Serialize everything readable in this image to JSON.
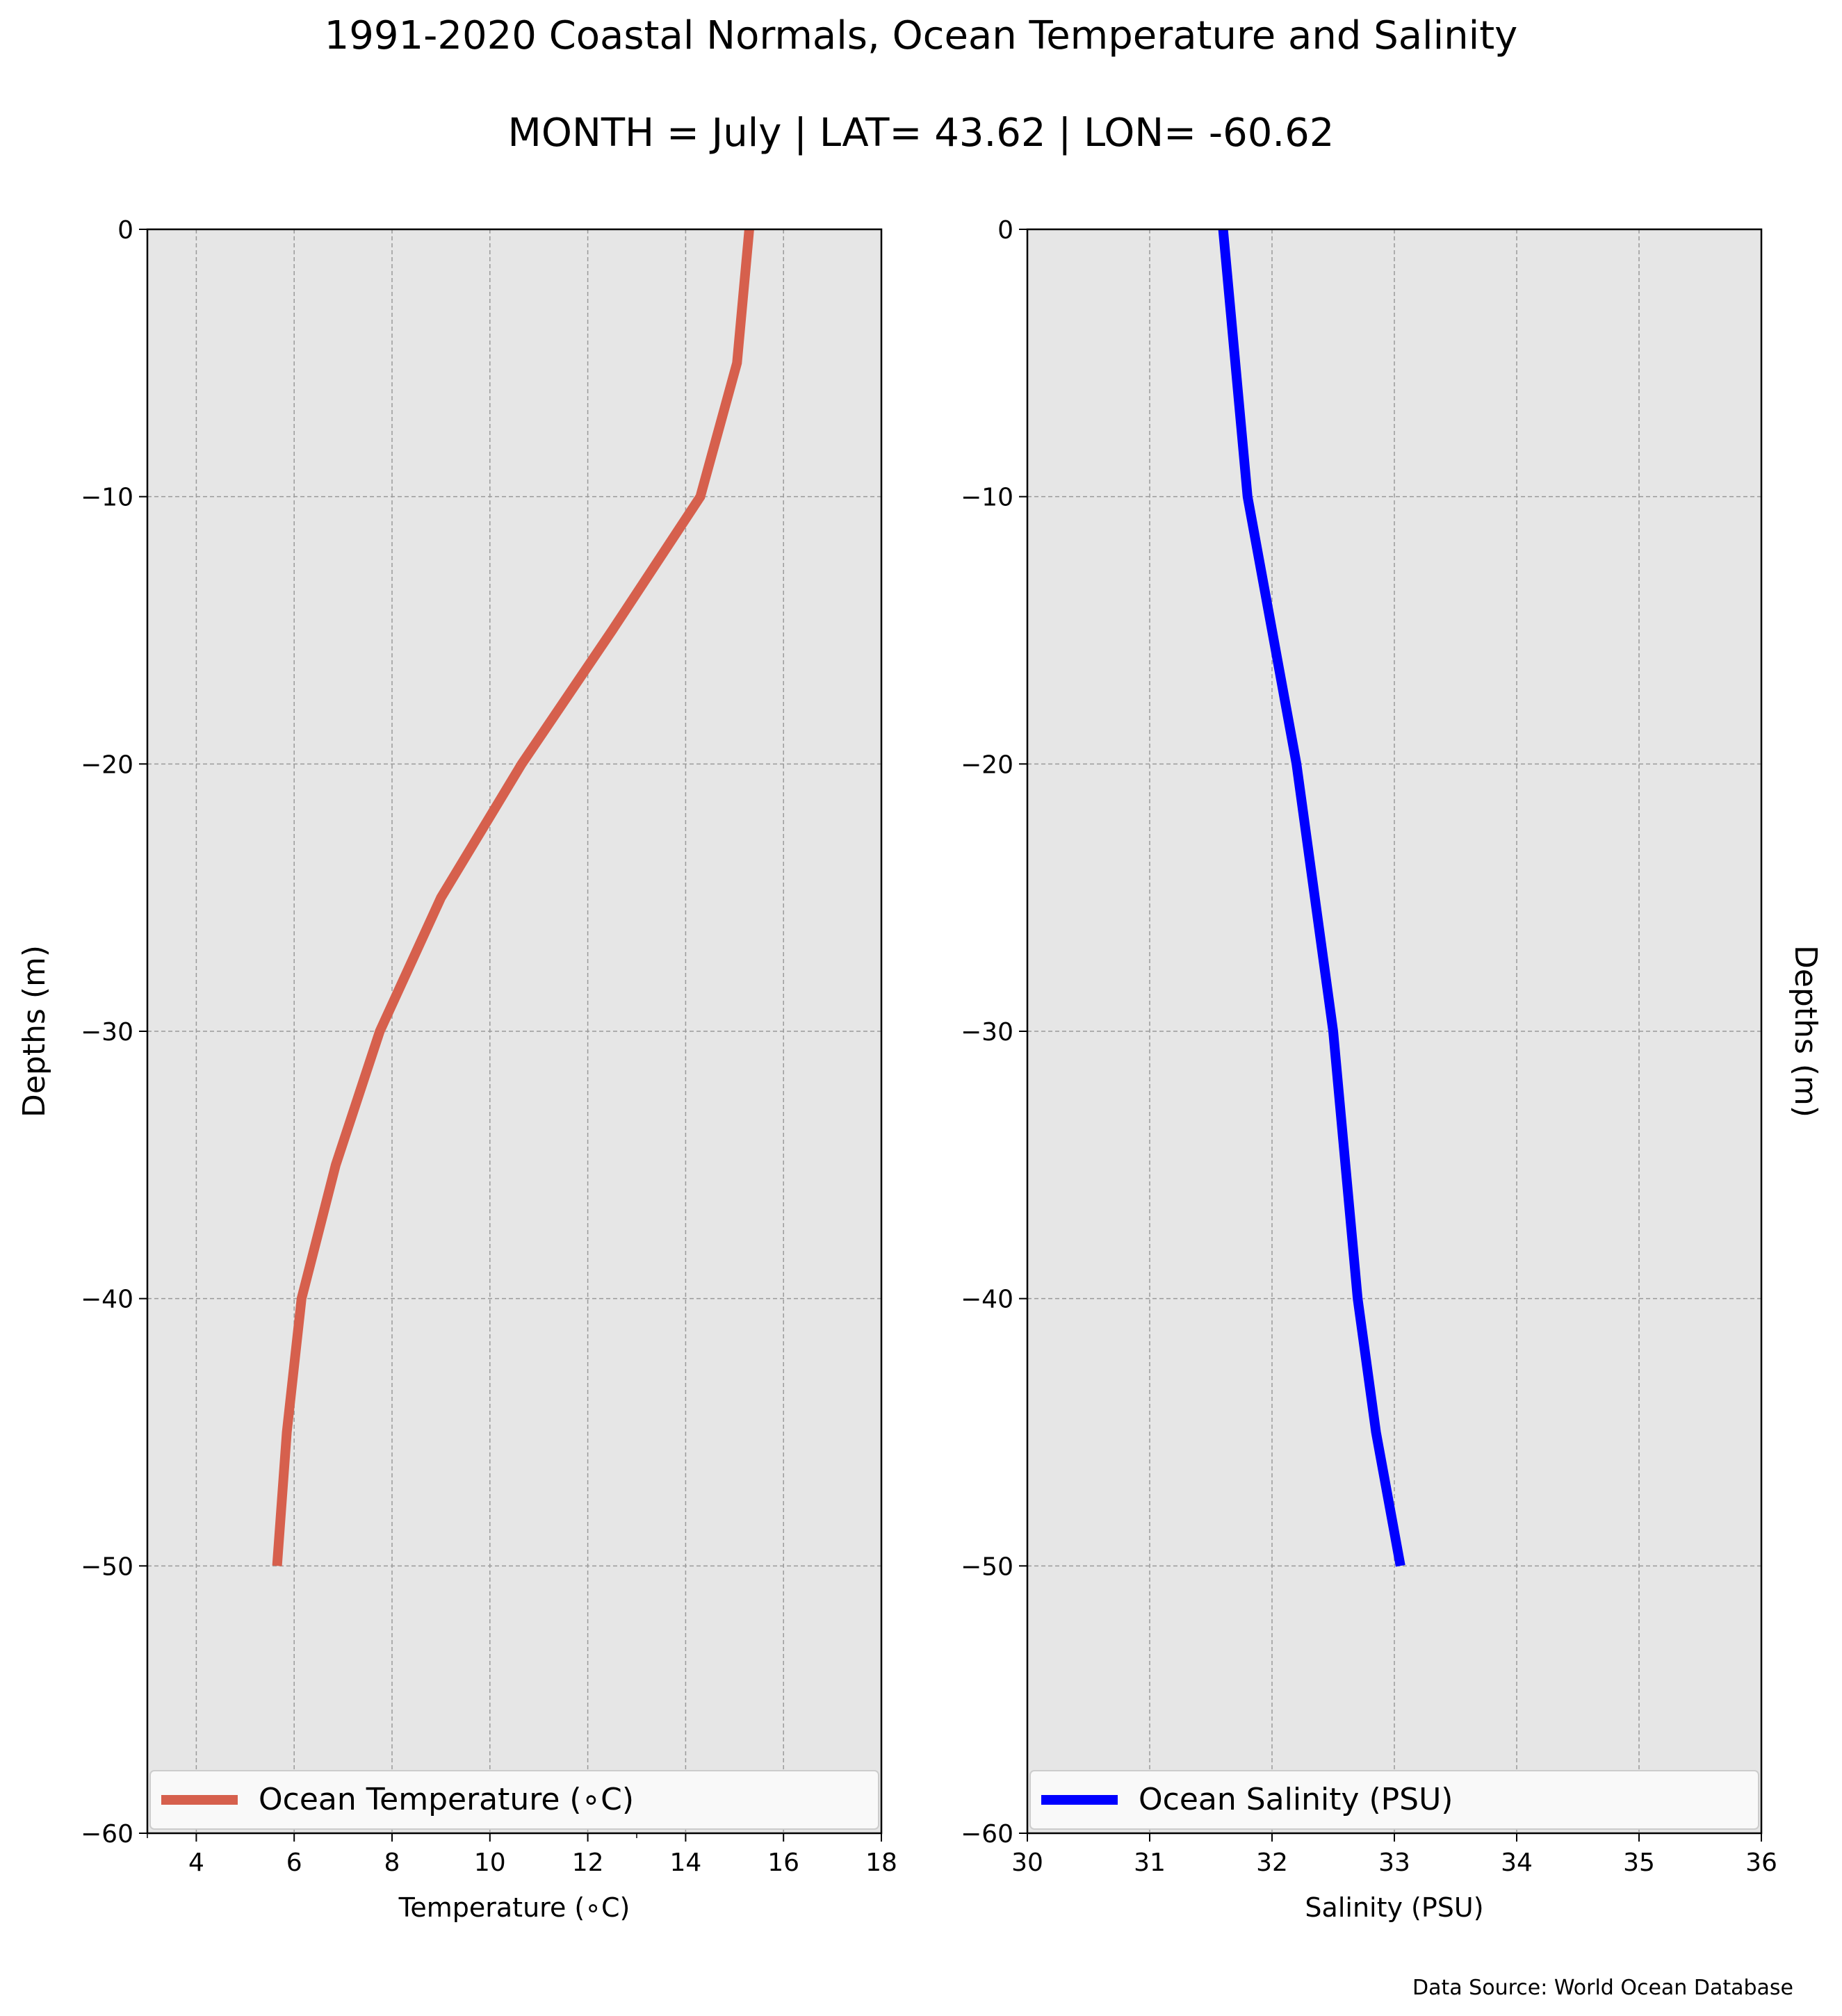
{
  "title": "1991-2020 Coastal Normals, Ocean Temperature and Salinity",
  "subtitle": "MONTH = July | LAT= 43.62 | LON= -60.62",
  "source_note": "Data Source: World Ocean Database",
  "colors": {
    "temperature": "#d6604d",
    "salinity": "#0000ff",
    "axes_bg": "#e6e6e6",
    "grid": "#9a9a9a"
  },
  "chart_data": [
    {
      "type": "line",
      "xlabel": "Temperature (∘C)",
      "ylabel": "Depths (m)",
      "xlim": [
        3,
        18
      ],
      "ylim": [
        -60,
        0
      ],
      "xticks": [
        4,
        6,
        8,
        10,
        12,
        14,
        16,
        18
      ],
      "xticks_minor": [
        3,
        13
      ],
      "yticks": [
        0,
        -10,
        -20,
        -30,
        -40,
        -50,
        -60
      ],
      "grid": true,
      "legend_position": "bottom",
      "series": [
        {
          "name": "Ocean Temperature (∘C)",
          "color": "#d6604d",
          "x": [
            15.3,
            15.05,
            14.3,
            12.5,
            10.65,
            9.0,
            7.75,
            6.85,
            6.15,
            5.85,
            5.65
          ],
          "y": [
            0,
            -5,
            -10,
            -15,
            -20,
            -25,
            -30,
            -35,
            -40,
            -45,
            -50
          ]
        }
      ]
    },
    {
      "type": "line",
      "xlabel": "Salinity (PSU)",
      "ylabel": "Depths (m)",
      "ylabel_side": "right",
      "xlim": [
        30,
        36
      ],
      "ylim": [
        -60,
        0
      ],
      "xticks": [
        30,
        31,
        32,
        33,
        34,
        35,
        36
      ],
      "yticks": [
        0,
        -10,
        -20,
        -30,
        -40,
        -50,
        -60
      ],
      "grid": true,
      "legend_position": "bottom",
      "series": [
        {
          "name": "Ocean Salinity (PSU)",
          "color": "#0000ff",
          "x": [
            31.6,
            31.7,
            31.8,
            32.0,
            32.2,
            32.35,
            32.5,
            32.6,
            32.7,
            32.85,
            33.05
          ],
          "y": [
            0,
            -5,
            -10,
            -15,
            -20,
            -25,
            -30,
            -35,
            -40,
            -45,
            -50
          ]
        }
      ]
    }
  ]
}
